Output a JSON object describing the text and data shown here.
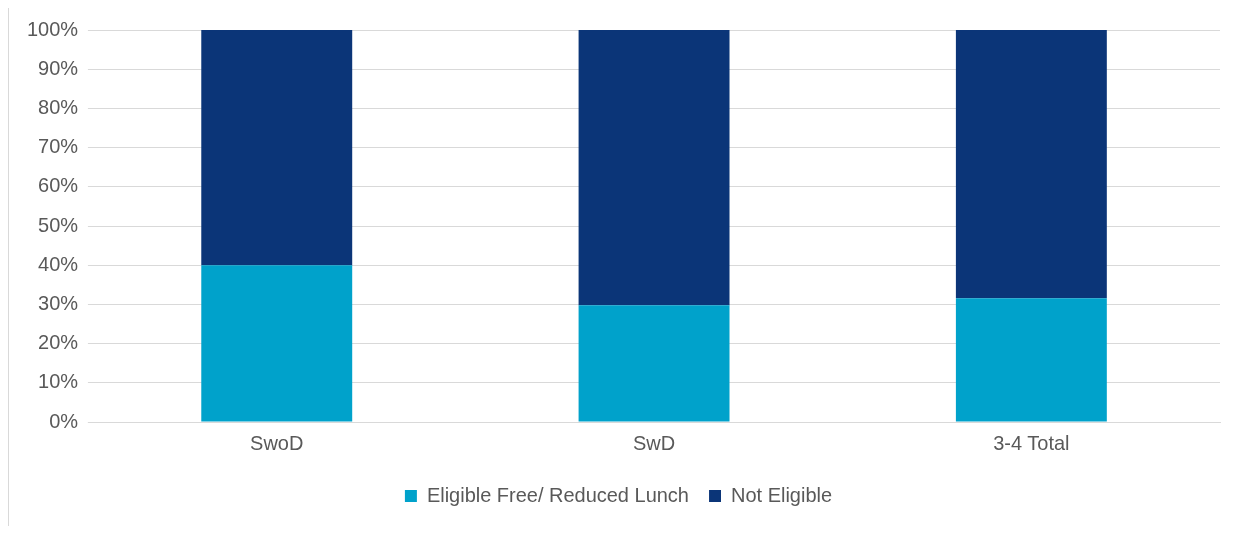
{
  "chart_data": {
    "type": "bar",
    "stacked": true,
    "categories": [
      "SwoD",
      "SwD",
      "3-4 Total"
    ],
    "series": [
      {
        "name": "Eligible Free/ Reduced Lunch",
        "color": "#00a2cb",
        "values": [
          40,
          29.8,
          31.6
        ]
      },
      {
        "name": "Not Eligible",
        "color": "#0b3578",
        "values": [
          60,
          70.2,
          68.4
        ]
      }
    ],
    "ylim": [
      0,
      100
    ],
    "yticks": [
      {
        "value": 0,
        "label": "0%"
      },
      {
        "value": 10,
        "label": "10%"
      },
      {
        "value": 20,
        "label": "20%"
      },
      {
        "value": 30,
        "label": "30%"
      },
      {
        "value": 40,
        "label": "40%"
      },
      {
        "value": 50,
        "label": "50%"
      },
      {
        "value": 60,
        "label": "60%"
      },
      {
        "value": 70,
        "label": "70%"
      },
      {
        "value": 80,
        "label": "80%"
      },
      {
        "value": 90,
        "label": "90%"
      },
      {
        "value": 100,
        "label": "100%"
      }
    ],
    "grid": "y",
    "legend": "bottom"
  }
}
